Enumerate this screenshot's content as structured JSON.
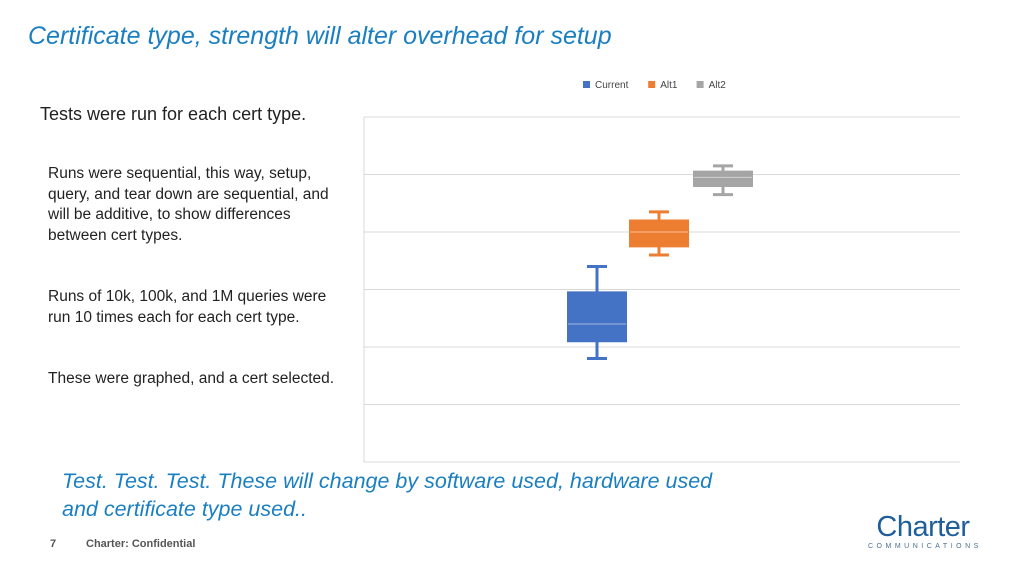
{
  "slide": {
    "title": "Certificate type, strength will alter overhead for setup",
    "subtitle": "Tests were run for each  cert type.",
    "paragraphs": [
      "Runs were sequential, this way, setup, query, and tear down are sequential, and will be additive, to show differences between cert types.",
      "Runs of 10k, 100k, and 1M queries were run 10 times each for each cert type.",
      "These were graphed, and a cert selected."
    ],
    "footer_note": "Test. Test. Test. These will change by software used, hardware used and certificate type used..",
    "page_number": "7",
    "confidential": "Charter: Confidential",
    "logo_text": "Charter",
    "logo_subtext": "COMMUNICATIONS"
  },
  "chart_data": {
    "type": "box",
    "title": "",
    "xlabel": "",
    "ylabel": "",
    "ylim": [
      0,
      6
    ],
    "grid": true,
    "legend_position": "top-right",
    "categories": [
      "Current",
      "Alt1",
      "Alt2"
    ],
    "series": [
      {
        "name": "Current",
        "color": "#4472c4",
        "min": 1.8,
        "q1": 2.1,
        "median": 2.4,
        "q3": 2.95,
        "max": 3.4
      },
      {
        "name": "Alt1",
        "color": "#ed7d31",
        "min": 3.6,
        "q1": 3.75,
        "median": 4.0,
        "q3": 4.2,
        "max": 4.35
      },
      {
        "name": "Alt2",
        "color": "#a5a5a5",
        "min": 4.65,
        "q1": 4.8,
        "median": 4.95,
        "q3": 5.05,
        "max": 5.15
      }
    ]
  }
}
